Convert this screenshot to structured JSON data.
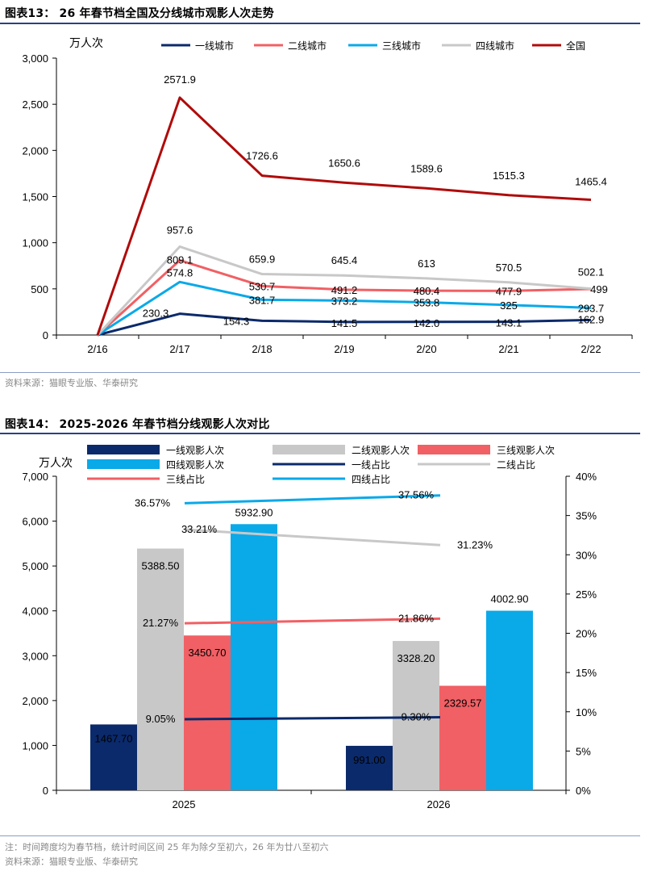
{
  "figure13": {
    "title": "图表13： 26 年春节档全国及分线城市观影人次走势",
    "unit": "万人次",
    "source": "资料来源：猫眼专业版、华泰研究"
  },
  "figure14": {
    "title": "图表14： 2025-2026 年春节档分线观影人次对比",
    "unit": "万人次",
    "note": "注：时间跨度均为春节档，统计时间区间 25 年为除夕至初六，26 年为廿八至初六",
    "source": "资料来源：猫眼专业版、华泰研究"
  },
  "chart_data": [
    {
      "type": "line",
      "ylabel": "万人次",
      "ylim": [
        0,
        3000
      ],
      "yticks": [
        0,
        500,
        1000,
        1500,
        2000,
        2500,
        3000
      ],
      "ytick_labels": [
        "0",
        "500",
        "1,000",
        "1,500",
        "2,000",
        "2,500",
        "3,000"
      ],
      "categories": [
        "2/16",
        "2/17",
        "2/18",
        "2/19",
        "2/20",
        "2/21",
        "2/22"
      ],
      "legend_position": "top",
      "series": [
        {
          "name": "一线城市",
          "color": "#0b2a6b",
          "values": [
            0,
            230.3,
            154.3,
            141.5,
            142.0,
            143.1,
            162.9
          ],
          "labels": [
            "",
            "230.3",
            "154.3",
            "141.5",
            "142.0",
            "143.1",
            "162.9"
          ]
        },
        {
          "name": "二线城市",
          "color": "#f06064",
          "values": [
            0,
            809.1,
            530.7,
            491.2,
            480.4,
            477.9,
            499
          ],
          "labels": [
            "",
            "809.1",
            "530.7",
            "491.2",
            "480.4",
            "477.9",
            "499"
          ]
        },
        {
          "name": "三线城市",
          "color": "#0aa9e8",
          "values": [
            0,
            574.8,
            381.7,
            373.2,
            353.8,
            325,
            293.7
          ],
          "labels": [
            "",
            "574.8",
            "381.7",
            "373.2",
            "353.8",
            "325",
            "293.7"
          ]
        },
        {
          "name": "四线城市",
          "color": "#c8c8c8",
          "values": [
            0,
            957.6,
            659.9,
            645.4,
            613,
            570.5,
            502.1
          ],
          "labels": [
            "",
            "957.6",
            "659.9",
            "645.4",
            "613",
            "570.5",
            "502.1"
          ]
        },
        {
          "name": "全国",
          "color": "#b00b0b",
          "values": [
            0,
            2571.9,
            1726.6,
            1650.6,
            1589.6,
            1515.3,
            1465.4
          ],
          "labels": [
            "",
            "2571.9",
            "1726.6",
            "1650.6",
            "1589.6",
            "1515.3",
            "1465.4"
          ]
        }
      ]
    },
    {
      "type": "bar",
      "ylabel": "万人次",
      "ylim": [
        0,
        7000
      ],
      "yticks": [
        0,
        1000,
        2000,
        3000,
        4000,
        5000,
        6000,
        7000
      ],
      "ytick_labels": [
        "0",
        "1,000",
        "2,000",
        "3,000",
        "4,000",
        "5,000",
        "6,000",
        "7,000"
      ],
      "y2lim": [
        0,
        40
      ],
      "y2ticks": [
        0,
        5,
        10,
        15,
        20,
        25,
        30,
        35,
        40
      ],
      "y2tick_labels": [
        "0%",
        "5%",
        "10%",
        "15%",
        "20%",
        "25%",
        "30%",
        "35%",
        "40%"
      ],
      "categories": [
        "2025",
        "2026"
      ],
      "legend_position": "top",
      "bar_series": [
        {
          "name": "一线观影人次",
          "color": "#0b2a6b",
          "values": [
            1467.7,
            991.0
          ],
          "labels": [
            "1467.70",
            "991.00"
          ]
        },
        {
          "name": "二线观影人次",
          "color": "#c8c8c8",
          "values": [
            5388.5,
            3328.2
          ],
          "labels": [
            "5388.50",
            "3328.20"
          ]
        },
        {
          "name": "三线观影人次",
          "color": "#f06064",
          "values": [
            3450.7,
            2329.57
          ],
          "labels": [
            "3450.70",
            "2329.57"
          ]
        },
        {
          "name": "四线观影人次",
          "color": "#0aa9e8",
          "values": [
            5932.9,
            4002.9
          ],
          "labels": [
            "5932.90",
            "4002.90"
          ]
        }
      ],
      "line_series": [
        {
          "name": "一线占比",
          "color": "#0b2a6b",
          "values": [
            9.05,
            9.3
          ],
          "labels": [
            "9.05%",
            "9.30%"
          ]
        },
        {
          "name": "二线占比",
          "color": "#c8c8c8",
          "values": [
            33.21,
            31.23
          ],
          "labels": [
            "33.21%",
            "31.23%"
          ]
        },
        {
          "name": "三线占比",
          "color": "#f06064",
          "values": [
            21.27,
            21.86
          ],
          "labels": [
            "21.27%",
            "21.86%"
          ]
        },
        {
          "name": "四线占比",
          "color": "#0aa9e8",
          "values": [
            36.57,
            37.56
          ],
          "labels": [
            "36.57%",
            "37.56%"
          ]
        }
      ]
    }
  ]
}
